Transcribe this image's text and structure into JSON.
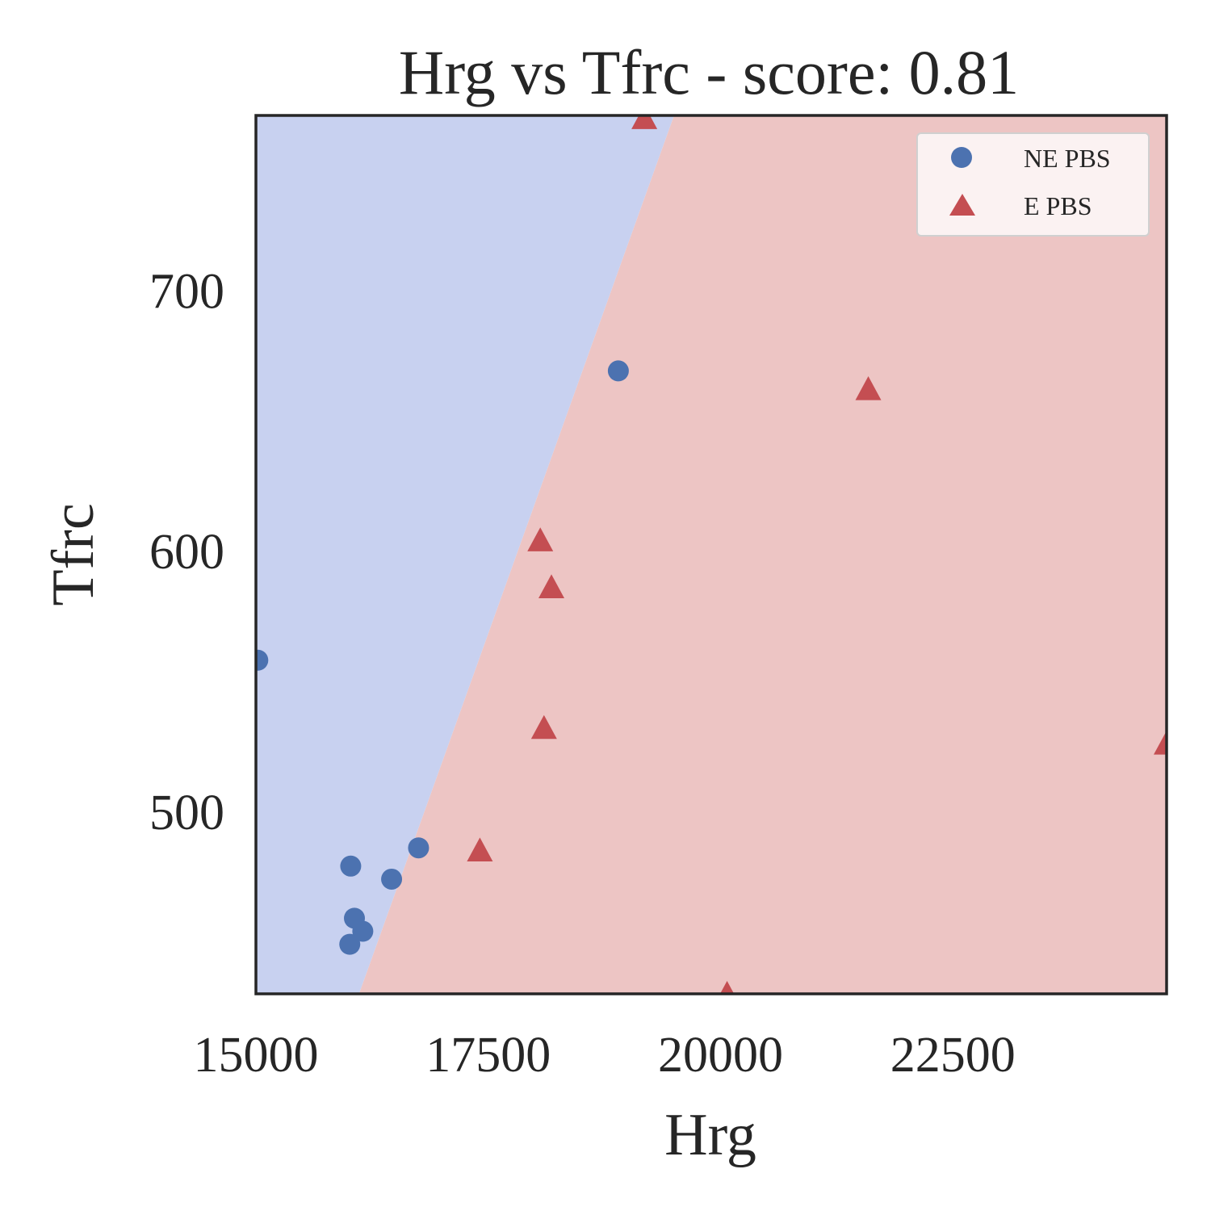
{
  "chart_data": {
    "type": "scatter",
    "title": "Hrg vs Tfrc - score: 0.81",
    "xlabel": "Hrg",
    "ylabel": "Tfrc",
    "xlim": [
      15000,
      24800
    ],
    "ylim": [
      430,
      767
    ],
    "x_ticks": [
      15000,
      17500,
      20000,
      22500
    ],
    "x_tick_labels": [
      "15000",
      "17500",
      "20000",
      "22500"
    ],
    "y_ticks": [
      500,
      600,
      700
    ],
    "y_tick_labels": [
      "500",
      "600",
      "700"
    ],
    "grid": false,
    "legend_position": "top-right",
    "decision_boundary": {
      "points": [
        [
          16110,
          430
        ],
        [
          19500,
          767
        ]
      ],
      "left_region_class": "NE PBS",
      "right_region_class": "E PBS",
      "left_region_color": "#c8d1f0",
      "right_region_color": "#edc5c4"
    },
    "series": [
      {
        "name": "NE PBS",
        "marker": "circle",
        "color": "#4c72b0",
        "points": [
          [
            15020,
            558
          ],
          [
            16020,
            479
          ],
          [
            16060,
            459
          ],
          [
            16150,
            454
          ],
          [
            16010,
            449
          ],
          [
            16460,
            474
          ],
          [
            16750,
            486
          ],
          [
            18900,
            669
          ]
        ]
      },
      {
        "name": "E PBS",
        "marker": "triangle",
        "color": "#c44e52",
        "points": [
          [
            19180,
            766
          ],
          [
            21590,
            662
          ],
          [
            18060,
            604
          ],
          [
            18180,
            586
          ],
          [
            18100,
            532
          ],
          [
            17410,
            485
          ],
          [
            20070,
            430
          ],
          [
            24800,
            526
          ]
        ]
      }
    ]
  }
}
